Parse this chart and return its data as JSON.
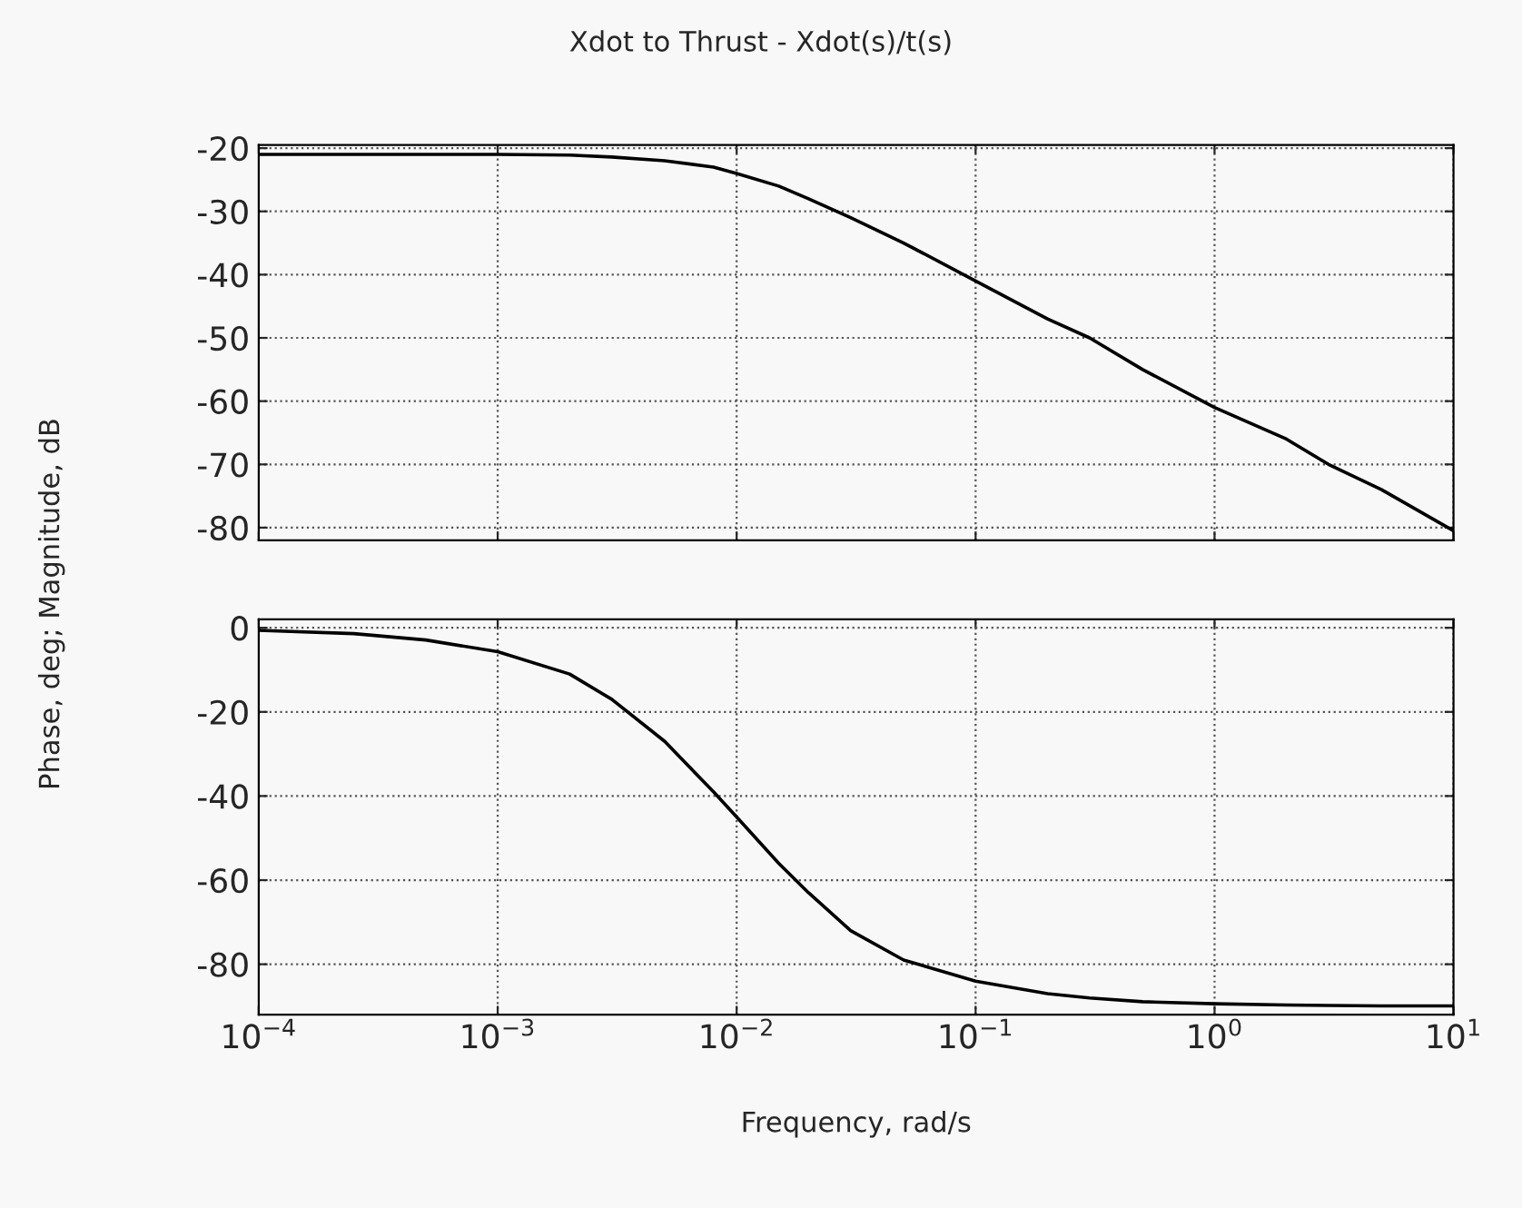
{
  "chart_data": [
    {
      "type": "line",
      "title": "Xdot to Thrust - Xdot(s)/t(s)",
      "ylabel": "Phase, deg; Magnitude, dB",
      "log": "x",
      "grid": true,
      "tick_labels": "y",
      "line_style": "solid",
      "marker": "none",
      "x": [
        0.0001,
        0.00025,
        0.0005,
        0.001,
        0.002,
        0.003,
        0.005,
        0.008,
        0.01,
        0.015,
        0.02,
        0.03,
        0.05,
        0.1,
        0.2,
        0.3,
        0.5,
        1,
        2,
        3,
        5,
        10
      ],
      "series": [
        {
          "color": "#000000",
          "values": [
            -21,
            -21,
            -21,
            -21,
            -21.1,
            -21.4,
            -22,
            -23,
            -24,
            -26,
            -28,
            -31,
            -35,
            -41,
            -47,
            -50,
            -55,
            -61,
            -66,
            -70,
            -74,
            -80.5
          ]
        }
      ],
      "xlim": [
        0.0001,
        10
      ],
      "xticks": [
        {
          "value": 0.0001,
          "label": null
        },
        {
          "value": 0.001,
          "label": null
        },
        {
          "value": 0.01,
          "label": null
        },
        {
          "value": 0.1,
          "label": null
        },
        {
          "value": 1,
          "label": null
        },
        {
          "value": 10,
          "label": null
        }
      ],
      "ylim": [
        -82,
        -19.5
      ],
      "yticks": [
        -80,
        -70,
        -60,
        -50,
        -40,
        -30,
        -20
      ]
    },
    {
      "type": "line",
      "xlabel": "Frequency, rad/s",
      "log": "x",
      "grid": true,
      "line_style": "solid",
      "marker": "none",
      "x": [
        0.0001,
        0.00025,
        0.0005,
        0.001,
        0.002,
        0.003,
        0.005,
        0.008,
        0.01,
        0.015,
        0.02,
        0.03,
        0.05,
        0.1,
        0.2,
        0.3,
        0.5,
        1,
        2,
        3,
        5,
        10
      ],
      "series": [
        {
          "color": "#000000",
          "values": [
            -0.6,
            -1.4,
            -2.9,
            -5.7,
            -11,
            -17,
            -27,
            -39,
            -45,
            -56,
            -63,
            -72,
            -79,
            -84,
            -87,
            -88,
            -88.9,
            -89.4,
            -89.7,
            -89.8,
            -89.9,
            -89.9
          ]
        }
      ],
      "xlim": [
        0.0001,
        10
      ],
      "xticks": [
        {
          "value": 0.0001,
          "label": "10$^{−4}$"
        },
        {
          "value": 0.001,
          "label": "10$^{−3}$"
        },
        {
          "value": 0.01,
          "label": "10$^{−2}$"
        },
        {
          "value": 0.1,
          "label": "10$^{−1}$"
        },
        {
          "value": 1,
          "label": "10$^{0}$"
        },
        {
          "value": 10,
          "label": "10$^{1}$"
        }
      ],
      "ylim": [
        -92,
        2
      ],
      "yticks": [
        -80,
        -60,
        -40,
        -20,
        0
      ]
    }
  ]
}
